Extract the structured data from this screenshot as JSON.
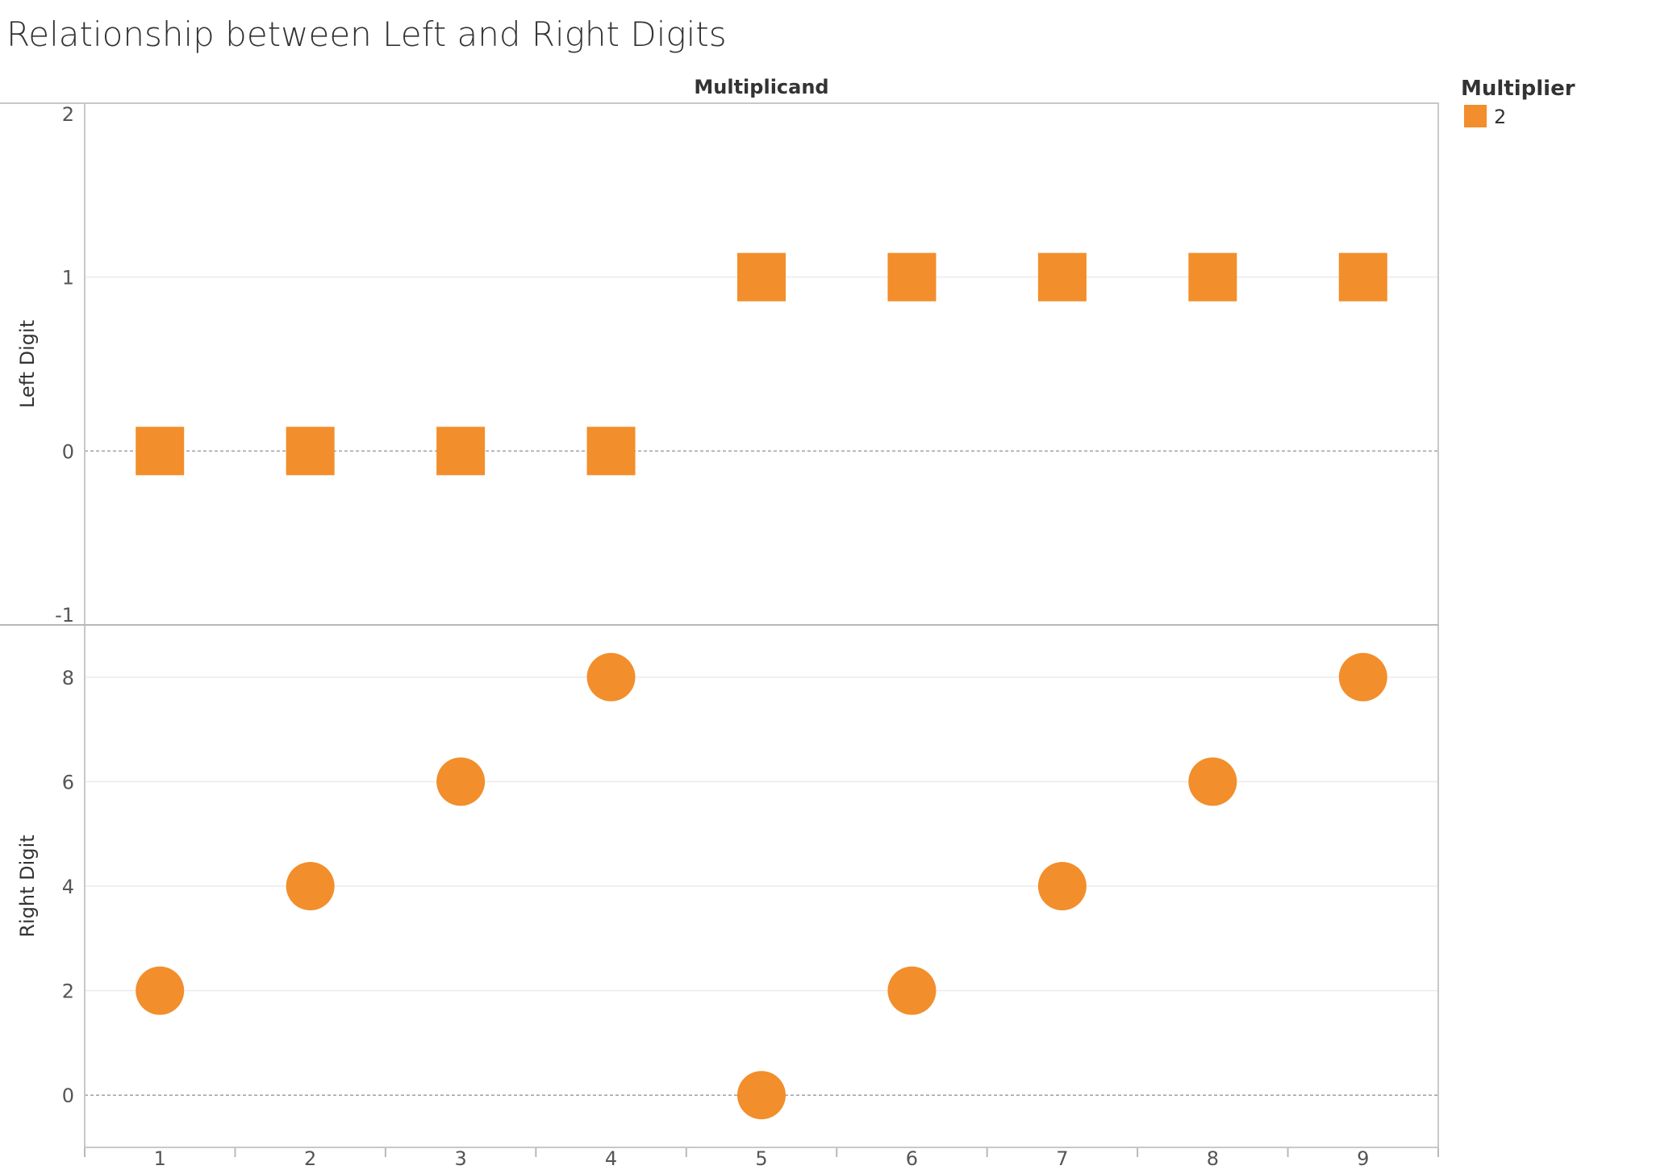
{
  "chart_data": {
    "type": "scatter",
    "title": "Relationship between Left and Right Digits",
    "column_header": "Multiplicand",
    "categories": [
      "1",
      "2",
      "3",
      "4",
      "5",
      "6",
      "7",
      "8",
      "9"
    ],
    "color": "#f28e2b",
    "legend": {
      "title": "Multiplier",
      "placement": "top-right",
      "items": [
        {
          "label": "2",
          "color": "#f28e2b",
          "shape": "square"
        }
      ]
    },
    "panels": [
      {
        "ylabel": "Left Digit",
        "ylim": [
          -1,
          2
        ],
        "yticks": [
          2,
          1,
          0,
          -1
        ],
        "shape": "square",
        "values": [
          0,
          0,
          0,
          0,
          1,
          1,
          1,
          1,
          1
        ]
      },
      {
        "ylabel": "Right Digit",
        "ylim": [
          -1,
          9
        ],
        "yticks": [
          8,
          6,
          4,
          2,
          0
        ],
        "shape": "circle",
        "values": [
          2,
          4,
          6,
          8,
          0,
          2,
          4,
          6,
          8
        ]
      }
    ],
    "grid": true
  }
}
